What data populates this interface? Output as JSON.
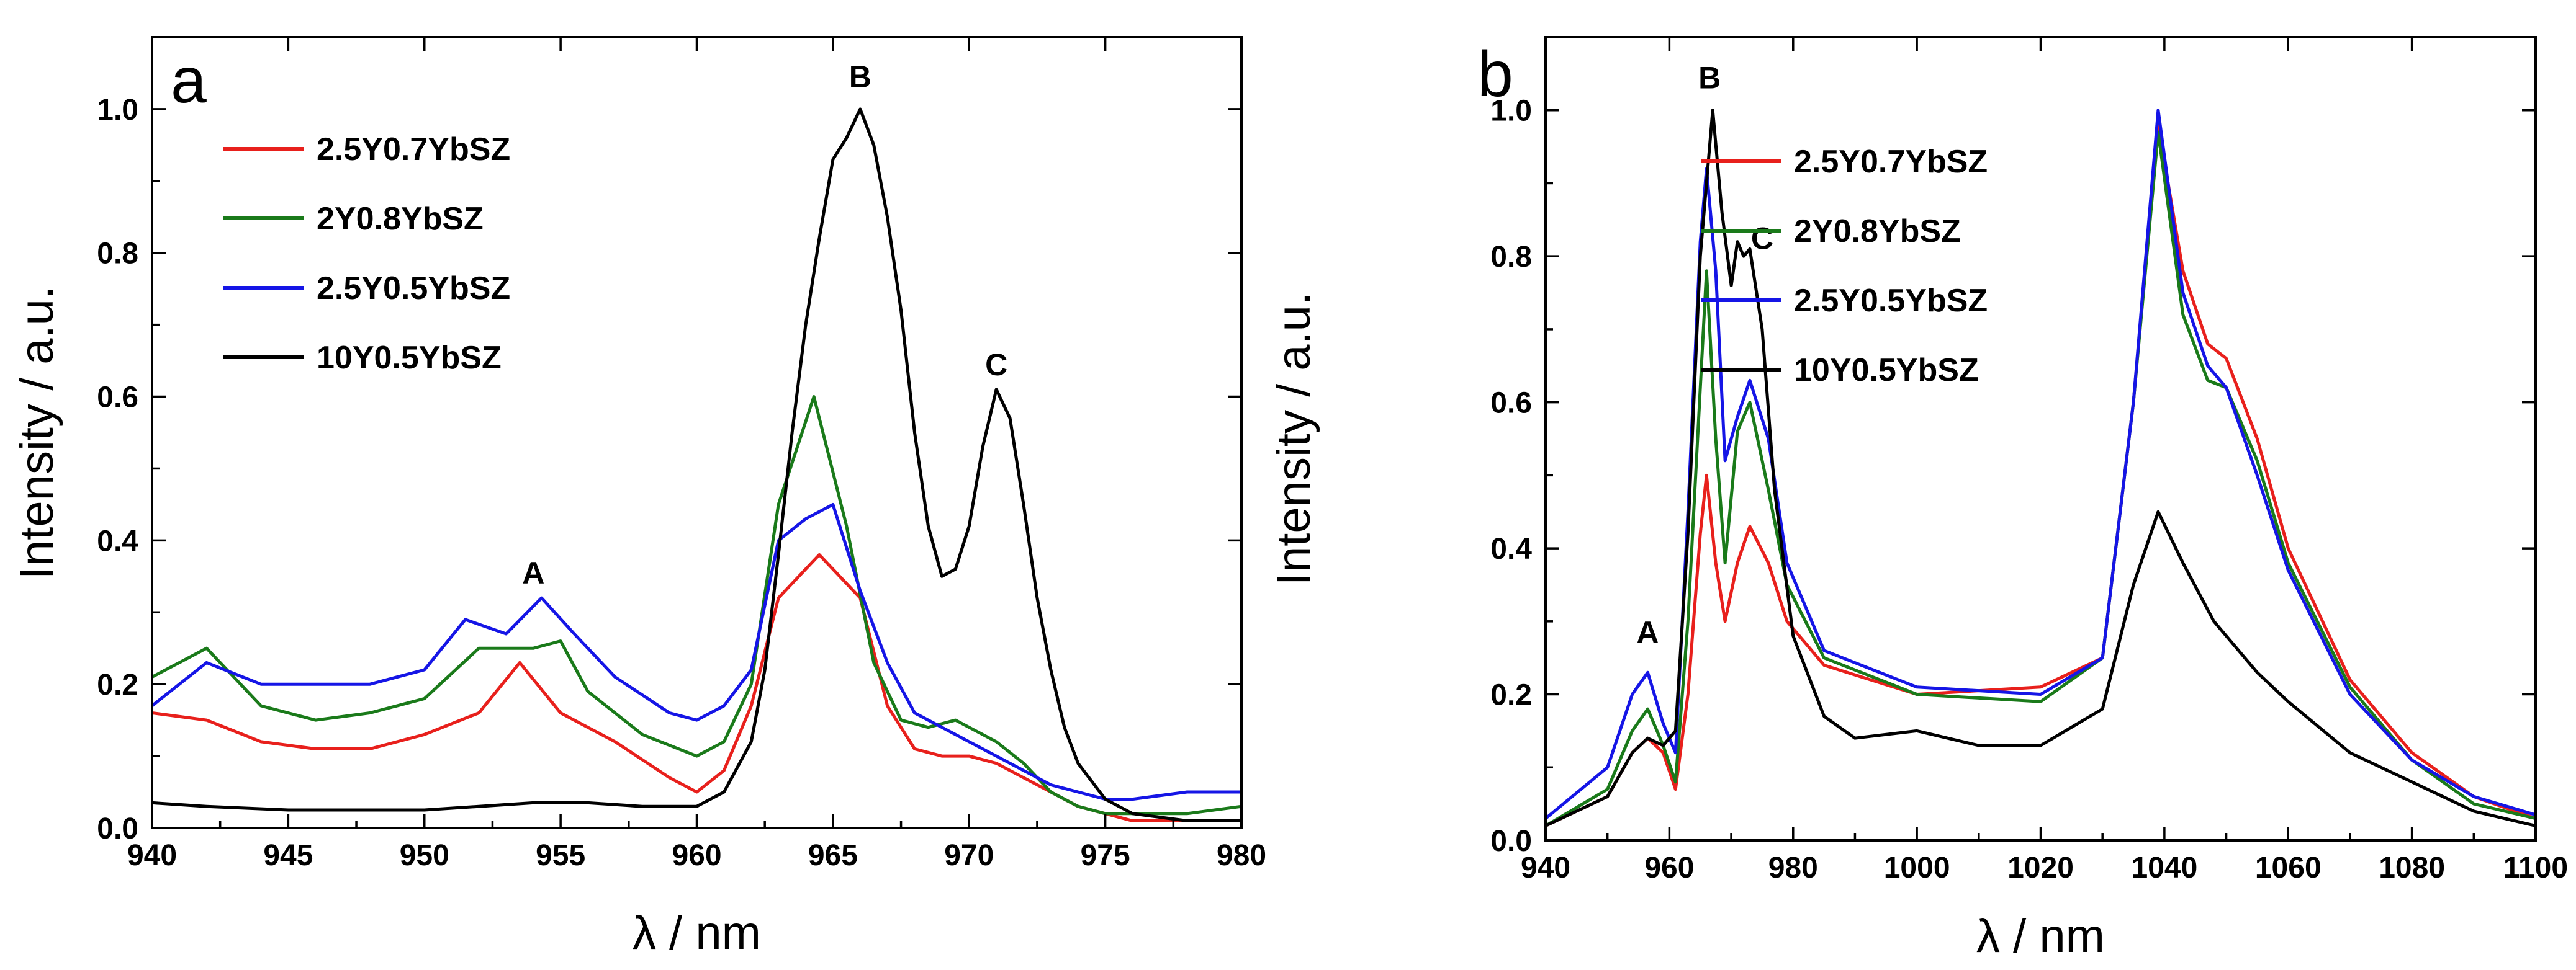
{
  "chart_data": [
    {
      "panel_label": "a",
      "type": "line",
      "xlabel": "λ / nm",
      "ylabel": "Intensity / a.u.",
      "xlim": [
        940,
        980
      ],
      "ylim": [
        0,
        1.1
      ],
      "xticks": [
        940,
        945,
        950,
        955,
        960,
        965,
        970,
        975,
        980
      ],
      "yticks": [
        0.0,
        0.2,
        0.4,
        0.6,
        0.8,
        1.0
      ],
      "legend_position": "top-left",
      "grid": false,
      "annotations": [
        {
          "text": "A",
          "x": 954,
          "y": 0.34
        },
        {
          "text": "B",
          "x": 966,
          "y": 1.03
        },
        {
          "text": "C",
          "x": 971,
          "y": 0.63
        }
      ],
      "series": [
        {
          "name": "2.5Y0.7YbSZ",
          "color": "#e8201c",
          "x": [
            940,
            942,
            944,
            946,
            948,
            950,
            952,
            953.5,
            955,
            957,
            959,
            960,
            961,
            962,
            963,
            964.5,
            966,
            967,
            968,
            969,
            970,
            971,
            972,
            973,
            974,
            975,
            976,
            978,
            980
          ],
          "y": [
            0.16,
            0.15,
            0.12,
            0.11,
            0.11,
            0.13,
            0.16,
            0.23,
            0.16,
            0.12,
            0.07,
            0.05,
            0.08,
            0.17,
            0.32,
            0.38,
            0.32,
            0.17,
            0.11,
            0.1,
            0.1,
            0.09,
            0.07,
            0.05,
            0.03,
            0.02,
            0.01,
            0.01,
            0.01
          ]
        },
        {
          "name": "2Y0.8YbSZ",
          "color": "#1a7a1a",
          "x": [
            940,
            942,
            944,
            946,
            948,
            950,
            952,
            954,
            955,
            956,
            958,
            960,
            961,
            962,
            963,
            964.3,
            965.5,
            966.5,
            967.5,
            968.5,
            969.5,
            971,
            972,
            973,
            974,
            975,
            976,
            978,
            980
          ],
          "y": [
            0.21,
            0.25,
            0.17,
            0.15,
            0.16,
            0.18,
            0.25,
            0.25,
            0.26,
            0.19,
            0.13,
            0.1,
            0.12,
            0.2,
            0.45,
            0.6,
            0.42,
            0.23,
            0.15,
            0.14,
            0.15,
            0.12,
            0.09,
            0.05,
            0.03,
            0.02,
            0.02,
            0.02,
            0.03
          ]
        },
        {
          "name": "2.5Y0.5YbSZ",
          "color": "#1515e6",
          "x": [
            940,
            942,
            944,
            946,
            948,
            950,
            951.5,
            953,
            954.3,
            955.5,
            957,
            959,
            960,
            961,
            962,
            963,
            964,
            965,
            966,
            967,
            968,
            969,
            970,
            971,
            972,
            973,
            974,
            975,
            976,
            978,
            980
          ],
          "y": [
            0.17,
            0.23,
            0.2,
            0.2,
            0.2,
            0.22,
            0.29,
            0.27,
            0.32,
            0.27,
            0.21,
            0.16,
            0.15,
            0.17,
            0.22,
            0.4,
            0.43,
            0.45,
            0.33,
            0.23,
            0.16,
            0.14,
            0.12,
            0.1,
            0.08,
            0.06,
            0.05,
            0.04,
            0.04,
            0.05,
            0.05
          ]
        },
        {
          "name": "10Y0.5YbSZ",
          "color": "#000000",
          "x": [
            940,
            942,
            945,
            948,
            950,
            952,
            954,
            956,
            958,
            960,
            961,
            962,
            962.5,
            963,
            963.5,
            964,
            964.5,
            965,
            965.5,
            966,
            966.5,
            967,
            967.5,
            968,
            968.5,
            969,
            969.5,
            970,
            970.5,
            971,
            971.5,
            972,
            972.5,
            973,
            973.5,
            974,
            975,
            976,
            978,
            980
          ],
          "y": [
            0.035,
            0.03,
            0.025,
            0.025,
            0.025,
            0.03,
            0.035,
            0.035,
            0.03,
            0.03,
            0.05,
            0.12,
            0.22,
            0.38,
            0.55,
            0.7,
            0.82,
            0.93,
            0.96,
            1.0,
            0.95,
            0.85,
            0.72,
            0.55,
            0.42,
            0.35,
            0.36,
            0.42,
            0.53,
            0.61,
            0.57,
            0.45,
            0.32,
            0.22,
            0.14,
            0.09,
            0.04,
            0.02,
            0.01,
            0.01
          ]
        }
      ]
    },
    {
      "panel_label": "b",
      "type": "line",
      "xlabel": "λ / nm",
      "ylabel": "Intensity / a.u.",
      "xlim": [
        940,
        1100
      ],
      "ylim": [
        0,
        1.1
      ],
      "xticks": [
        940,
        960,
        980,
        1000,
        1020,
        1040,
        1060,
        1080,
        1100
      ],
      "yticks": [
        0.0,
        0.2,
        0.4,
        0.6,
        0.8,
        1.0
      ],
      "legend_position": "top-center",
      "grid": false,
      "annotations": [
        {
          "text": "A",
          "x": 956.5,
          "y": 0.27
        },
        {
          "text": "B",
          "x": 966.5,
          "y": 1.03
        },
        {
          "text": "C",
          "x": 975,
          "y": 0.81
        }
      ],
      "series": [
        {
          "name": "2.5Y0.7YbSZ",
          "color": "#e8201c",
          "x": [
            940,
            950,
            954,
            956.5,
            959,
            961,
            963,
            965,
            966,
            967.5,
            969,
            971,
            973,
            976,
            979,
            985,
            1000,
            1020,
            1030,
            1035,
            1039,
            1043,
            1047,
            1050,
            1055,
            1060,
            1070,
            1080,
            1090,
            1100
          ],
          "y": [
            0.02,
            0.06,
            0.12,
            0.14,
            0.12,
            0.07,
            0.2,
            0.42,
            0.5,
            0.38,
            0.3,
            0.38,
            0.43,
            0.38,
            0.3,
            0.24,
            0.2,
            0.21,
            0.25,
            0.6,
            0.98,
            0.78,
            0.68,
            0.66,
            0.55,
            0.4,
            0.22,
            0.12,
            0.06,
            0.03
          ]
        },
        {
          "name": "2Y0.8YbSZ",
          "color": "#1a7a1a",
          "x": [
            940,
            950,
            954,
            956.5,
            959,
            961,
            963,
            965,
            966,
            967.5,
            969,
            971,
            973,
            976,
            979,
            985,
            1000,
            1020,
            1030,
            1035,
            1039,
            1043,
            1047,
            1050,
            1055,
            1060,
            1070,
            1080,
            1090,
            1100
          ],
          "y": [
            0.02,
            0.07,
            0.15,
            0.18,
            0.13,
            0.08,
            0.3,
            0.62,
            0.78,
            0.55,
            0.38,
            0.56,
            0.6,
            0.48,
            0.35,
            0.25,
            0.2,
            0.19,
            0.25,
            0.6,
            0.97,
            0.72,
            0.63,
            0.62,
            0.52,
            0.38,
            0.21,
            0.11,
            0.05,
            0.03
          ]
        },
        {
          "name": "2.5Y0.5YbSZ",
          "color": "#1515e6",
          "x": [
            940,
            950,
            954,
            956.5,
            959,
            961,
            963,
            965,
            966,
            967.5,
            969,
            971,
            973,
            976,
            979,
            985,
            1000,
            1020,
            1030,
            1035,
            1039,
            1043,
            1047,
            1050,
            1055,
            1060,
            1070,
            1080,
            1090,
            1100
          ],
          "y": [
            0.03,
            0.1,
            0.2,
            0.23,
            0.16,
            0.12,
            0.45,
            0.82,
            0.92,
            0.78,
            0.52,
            0.58,
            0.63,
            0.55,
            0.38,
            0.26,
            0.21,
            0.2,
            0.25,
            0.6,
            1.0,
            0.75,
            0.65,
            0.62,
            0.5,
            0.37,
            0.2,
            0.11,
            0.06,
            0.035
          ]
        },
        {
          "name": "10Y0.5YbSZ",
          "color": "#000000",
          "x": [
            940,
            950,
            954,
            956.5,
            959,
            961,
            963,
            965,
            967,
            968.5,
            970,
            971,
            972,
            973,
            975,
            977,
            980,
            985,
            990,
            1000,
            1010,
            1020,
            1030,
            1035,
            1039,
            1043,
            1048,
            1055,
            1060,
            1070,
            1080,
            1090,
            1100
          ],
          "y": [
            0.02,
            0.06,
            0.12,
            0.14,
            0.13,
            0.15,
            0.42,
            0.8,
            1.0,
            0.86,
            0.76,
            0.82,
            0.8,
            0.81,
            0.7,
            0.48,
            0.28,
            0.17,
            0.14,
            0.15,
            0.13,
            0.13,
            0.18,
            0.35,
            0.45,
            0.38,
            0.3,
            0.23,
            0.19,
            0.12,
            0.08,
            0.04,
            0.02
          ]
        }
      ]
    }
  ]
}
